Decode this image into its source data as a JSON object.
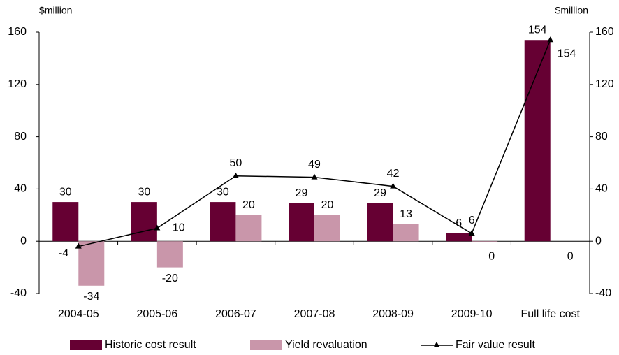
{
  "chart_data": {
    "type": "bar",
    "y_label": "$million",
    "y2_label": "$million",
    "categories": [
      "2004-05",
      "2005-06",
      "2006-07",
      "2007-08",
      "2008-09",
      "2009-10",
      "Full life cost"
    ],
    "series": [
      {
        "name": "Historic cost result",
        "color": "#660033",
        "type": "bar",
        "values": [
          30,
          30,
          30,
          29,
          29,
          6,
          154
        ]
      },
      {
        "name": "Yield revaluation",
        "color": "#c996aa",
        "type": "bar",
        "values": [
          -34,
          -20,
          20,
          20,
          13,
          0,
          0
        ]
      },
      {
        "name": "Fair value result",
        "color": "#000000",
        "type": "line",
        "values": [
          -4,
          10,
          50,
          49,
          42,
          6,
          154
        ]
      }
    ],
    "ylim": [
      -40,
      160
    ],
    "yticks": [
      -40,
      0,
      40,
      80,
      120,
      160
    ],
    "y2lim": [
      -40,
      160
    ],
    "y2ticks": [
      -40,
      0,
      40,
      80,
      120,
      160
    ],
    "legend": "bottom"
  }
}
